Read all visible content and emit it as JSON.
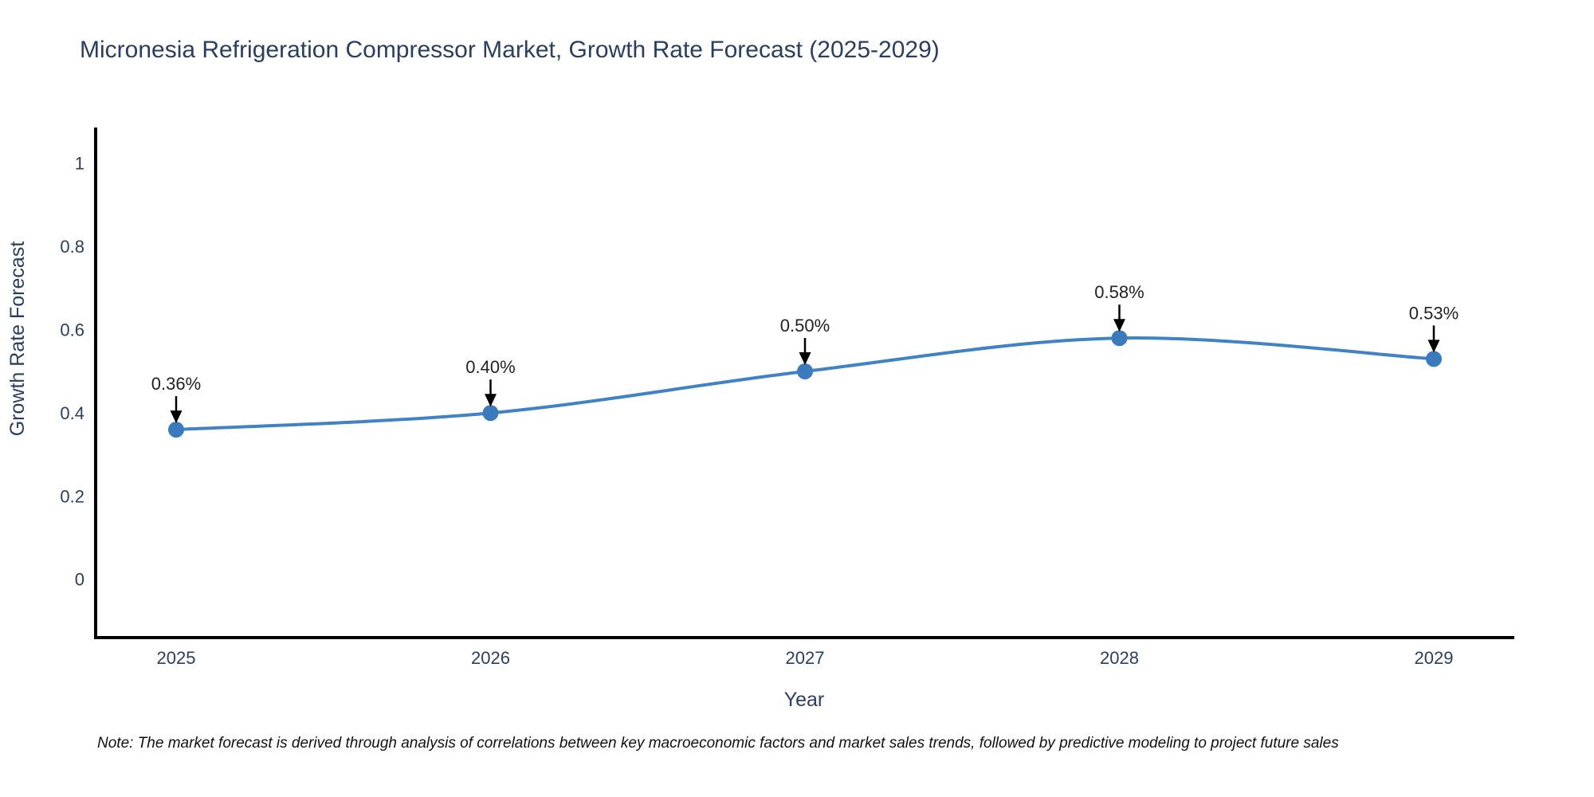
{
  "title": "Micronesia Refrigeration Compressor Market, Growth Rate Forecast (2025-2029)",
  "note": "Note: The market forecast is derived through analysis of correlations between key macroeconomic factors and market sales trends, followed by predictive modeling to project future sales",
  "colors": {
    "line": "#4182c4",
    "marker": "#3b7bbd",
    "axis": "#000000",
    "tick_text": "#2a3f5f",
    "axis_title_text": "#2a3f5f",
    "annotation_text": "#222222",
    "arrow": "#000000",
    "background": "#ffffff"
  },
  "chart_data": {
    "type": "line",
    "title": "Micronesia Refrigeration Compressor Market, Growth Rate Forecast (2025-2029)",
    "x": [
      2025,
      2026,
      2027,
      2028,
      2029
    ],
    "series": [
      {
        "name": "Growth Rate Forecast",
        "values": [
          0.36,
          0.4,
          0.5,
          0.58,
          0.53
        ],
        "point_labels": [
          "0.36%",
          "0.40%",
          "0.50%",
          "0.58%",
          "0.53%"
        ]
      }
    ],
    "xlabel": "Year",
    "ylabel": "Growth Rate Forecast",
    "yticks": [
      0,
      0.2,
      0.4,
      0.6,
      0.8,
      1
    ],
    "ytick_labels": [
      "0",
      "0.2",
      "0.4",
      "0.6",
      "0.8",
      "1"
    ],
    "xtick_labels": [
      "2025",
      "2026",
      "2027",
      "2028",
      "2029"
    ],
    "ylim": [
      -0.14,
      1.09
    ],
    "grid": false,
    "legend": "none",
    "line_shape": "spline",
    "annotations_have_arrows": true
  }
}
